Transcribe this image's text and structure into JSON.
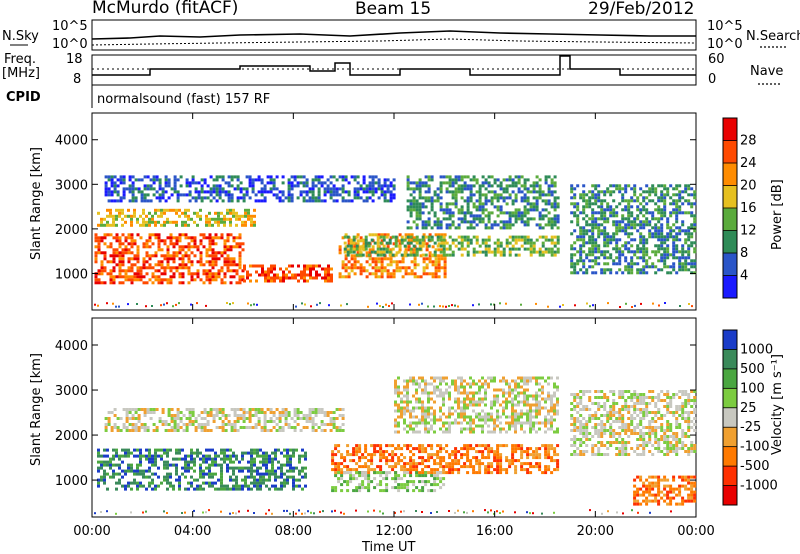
{
  "header": {
    "station": "McMurdo (fitACF)",
    "beam": "Beam 15",
    "date": "29/Feb/2012"
  },
  "strip_labels": {
    "nsky": "N.Sky",
    "nsearch": "N.Search",
    "freq_line1": "Freq.",
    "freq_line2": "[MHz]",
    "nave": "Nave",
    "cpid": "CPID",
    "cpid_value": "normalsound (fast) 157 RF"
  },
  "strip_ticks": {
    "nsky_left": [
      "10^5",
      "10^0"
    ],
    "nsky_right": [
      "10^5",
      "10^0"
    ],
    "freq_left": [
      "18",
      "8"
    ],
    "nave_right": [
      "60",
      "0"
    ]
  },
  "chart_data": [
    {
      "type": "heatmap",
      "panel": "power",
      "xlabel": "",
      "ylabel": "Slant Range [km]",
      "xlim": [
        0,
        24
      ],
      "ylim": [
        180,
        4600
      ],
      "yticks": [
        1000,
        2000,
        3000,
        4000
      ],
      "colorbar": {
        "label": "Power [dB]",
        "ticks": [
          "4",
          "8",
          "12",
          "16",
          "20",
          "24",
          "28"
        ],
        "colors": [
          "#1a1aff",
          "#2a55c8",
          "#2e8b57",
          "#5aab3c",
          "#e6c020",
          "#ff8c00",
          "#ff4a00",
          "#e80000"
        ]
      },
      "bands": [
        {
          "x": [
            0.2,
            6.5
          ],
          "y": [
            2050,
            2450
          ],
          "level": 4
        },
        {
          "x": [
            0.1,
            6.0
          ],
          "y": [
            800,
            1900
          ],
          "level": 6
        },
        {
          "x": [
            6.0,
            9.5
          ],
          "y": [
            850,
            1200
          ],
          "level": 6
        },
        {
          "x": [
            9.8,
            14.0
          ],
          "y": [
            900,
            1900
          ],
          "level": 5
        },
        {
          "x": [
            10.0,
            18.5
          ],
          "y": [
            1400,
            1850
          ],
          "level": 3
        },
        {
          "x": [
            12.5,
            18.5
          ],
          "y": [
            2000,
            3200
          ],
          "level": 2
        },
        {
          "x": [
            19.0,
            24.0
          ],
          "y": [
            1000,
            3000
          ],
          "level": 2
        },
        {
          "x": [
            0.5,
            12.0
          ],
          "y": [
            2600,
            3200
          ],
          "level": 1
        }
      ]
    },
    {
      "type": "heatmap",
      "panel": "velocity",
      "xlabel": "Time UT",
      "ylabel": "Slant Range [km]",
      "xlim": [
        0,
        24
      ],
      "ylim": [
        180,
        4600
      ],
      "xticks": [
        "00:00",
        "04:00",
        "08:00",
        "12:00",
        "16:00",
        "20:00",
        "00:00"
      ],
      "yticks": [
        1000,
        2000,
        3000,
        4000
      ],
      "colorbar": {
        "label": "Velocity [m s⁻¹]",
        "ticks": [
          "1000",
          "500",
          "100",
          "25",
          "-25",
          "-100",
          "-500",
          "-1000"
        ],
        "colors": [
          "#1a3cc8",
          "#3a8a5a",
          "#4aa640",
          "#7ccc40",
          "#c8c8c0",
          "#f0a030",
          "#ff7a00",
          "#ff3000",
          "#e80000"
        ]
      },
      "bands": [
        {
          "x": [
            0.2,
            8.5
          ],
          "y": [
            800,
            1700
          ],
          "level": 1
        },
        {
          "x": [
            0.5,
            10.0
          ],
          "y": [
            2100,
            2600
          ],
          "level": 4
        },
        {
          "x": [
            9.5,
            18.5
          ],
          "y": [
            1200,
            1800
          ],
          "level": 6
        },
        {
          "x": [
            9.5,
            14.0
          ],
          "y": [
            800,
            1200
          ],
          "level": 3
        },
        {
          "x": [
            12.0,
            18.5
          ],
          "y": [
            2100,
            3300
          ],
          "level": 4
        },
        {
          "x": [
            19.0,
            24.0
          ],
          "y": [
            1600,
            3000
          ],
          "level": 4
        },
        {
          "x": [
            21.5,
            24.0
          ],
          "y": [
            500,
            1100
          ],
          "level": 6
        }
      ]
    }
  ]
}
